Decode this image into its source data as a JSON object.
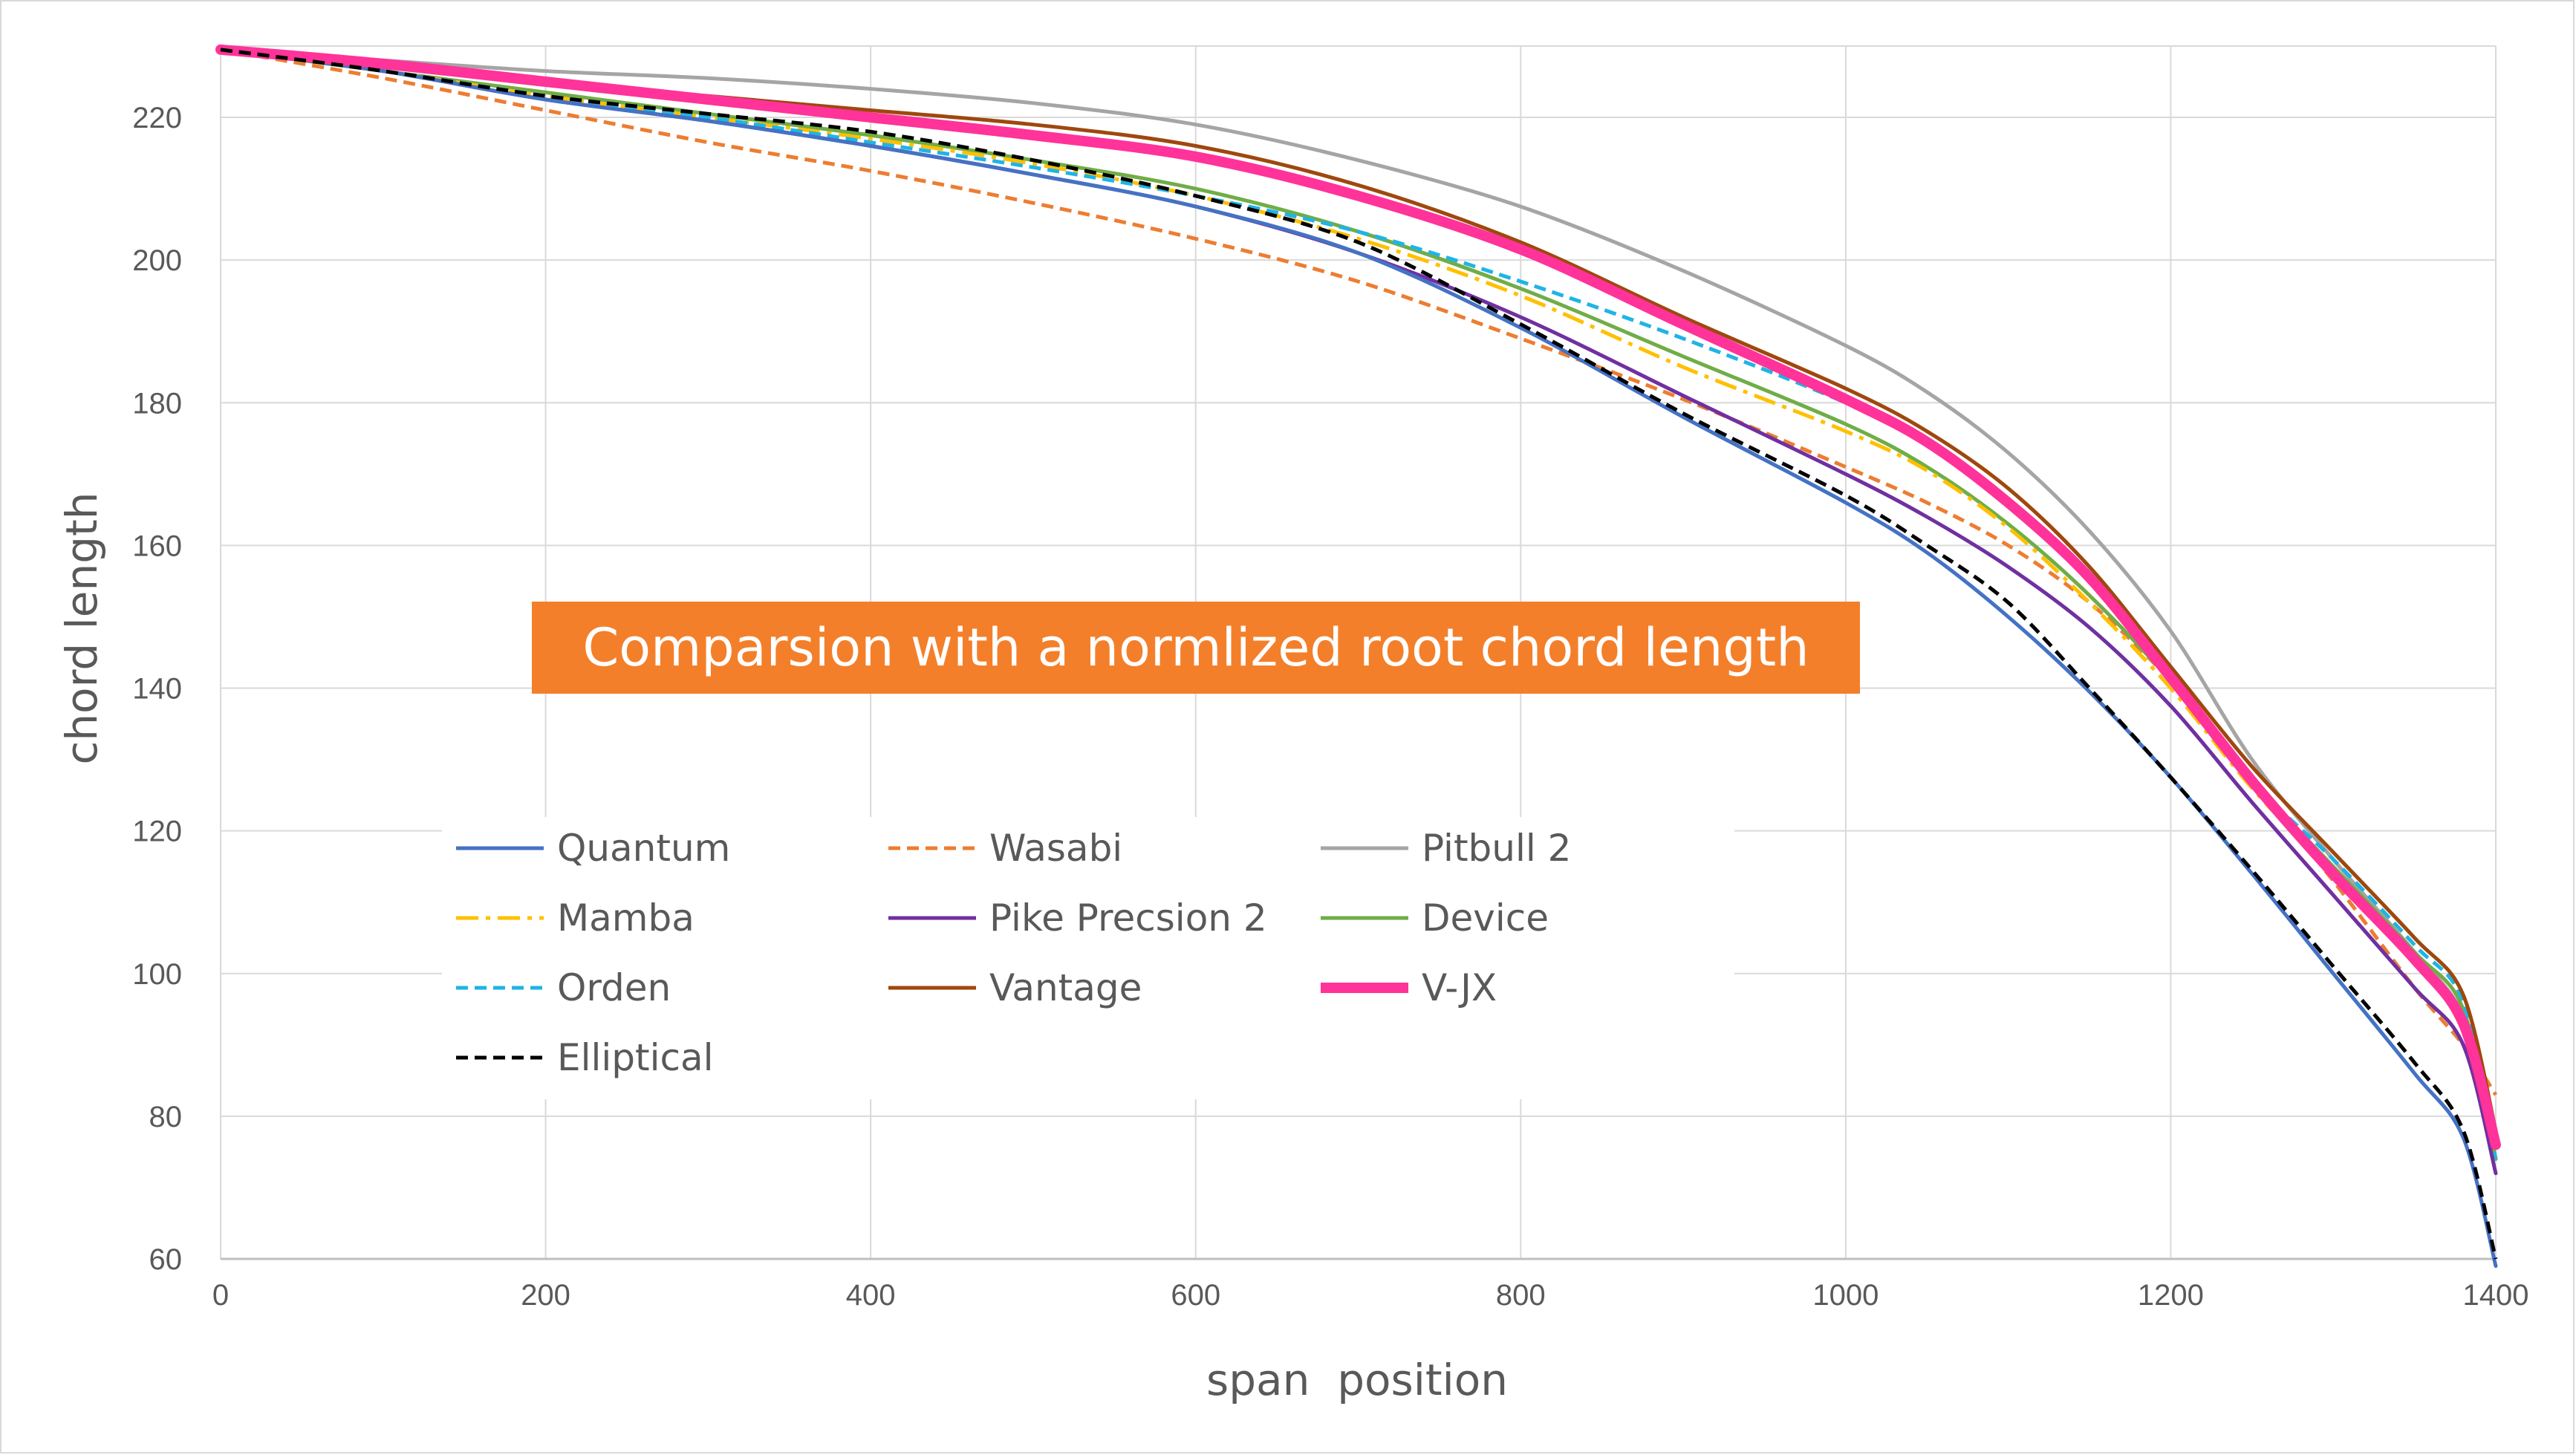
{
  "chart_data": {
    "type": "line",
    "xlabel": "span  position",
    "ylabel": "chord length",
    "annotation": "Comparsion with a normlized root chord length",
    "xlim": [
      0,
      1400
    ],
    "ylim": [
      60,
      230
    ],
    "x_ticks": [
      0,
      200,
      400,
      600,
      800,
      1000,
      1200,
      1400
    ],
    "y_ticks": [
      60,
      80,
      100,
      120,
      140,
      160,
      180,
      200,
      220
    ],
    "grid": "vertical and horizontal",
    "legend_position": "inside, lower-left",
    "series": [
      {
        "name": "Quantum",
        "color": "#4472c4",
        "dash": "solid",
        "x": [
          0,
          100,
          200,
          300,
          400,
          500,
          600,
          700,
          800,
          900,
          1000,
          1050,
          1100,
          1150,
          1200,
          1250,
          1300,
          1350,
          1380,
          1400
        ],
        "y": [
          229.5,
          226.5,
          222.5,
          219.5,
          216,
          212,
          207.5,
          201,
          190.5,
          178,
          166,
          159,
          150,
          139.5,
          127.5,
          114,
          100,
          86,
          77,
          59
        ]
      },
      {
        "name": "Wasabi",
        "color": "#ed7d31",
        "dash": "dash",
        "x": [
          0,
          100,
          200,
          300,
          400,
          500,
          600,
          700,
          800,
          900,
          1000,
          1050,
          1100,
          1150,
          1200,
          1250,
          1300,
          1350,
          1380,
          1400
        ],
        "y": [
          229.5,
          225.5,
          221,
          216.5,
          212.5,
          208,
          203,
          197,
          189,
          180.5,
          171,
          166,
          160,
          152,
          141,
          127,
          113,
          98,
          90,
          83
        ]
      },
      {
        "name": "Pitbull 2",
        "color": "#a5a5a5",
        "dash": "solid",
        "x": [
          0,
          100,
          200,
          300,
          400,
          500,
          600,
          700,
          800,
          900,
          1000,
          1050,
          1100,
          1150,
          1200,
          1250,
          1300,
          1350,
          1380,
          1400
        ],
        "y": [
          229.5,
          228,
          226.5,
          225.5,
          224,
          222,
          219,
          214,
          207.5,
          198.5,
          188,
          181.5,
          173,
          162,
          148,
          130,
          116,
          103,
          94,
          77
        ]
      },
      {
        "name": "Mamba",
        "color": "#ffc000",
        "dash": "dashdot",
        "x": [
          0,
          100,
          200,
          300,
          400,
          500,
          600,
          700,
          800,
          900,
          1000,
          1050,
          1100,
          1150,
          1200,
          1250,
          1300,
          1350,
          1380,
          1400
        ],
        "y": [
          229.5,
          226.5,
          223,
          220,
          217,
          213.5,
          209,
          203,
          195,
          185,
          176,
          170.5,
          162.5,
          152,
          140,
          126,
          114,
          102,
          94,
          77
        ]
      },
      {
        "name": "Pike Precsion 2",
        "color": "#7030a0",
        "dash": "solid",
        "x": [
          0,
          100,
          200,
          300,
          400,
          500,
          600,
          700,
          800,
          900,
          1000,
          1050,
          1100,
          1150,
          1200,
          1250,
          1300,
          1350,
          1380,
          1400
        ],
        "y": [
          229.5,
          226.5,
          222.5,
          219.5,
          216,
          212,
          207.5,
          201,
          192,
          181,
          170,
          164,
          157,
          148.5,
          137.5,
          124,
          111,
          98,
          90,
          72
        ]
      },
      {
        "name": "Device",
        "color": "#70ad47",
        "dash": "solid",
        "x": [
          0,
          100,
          200,
          300,
          400,
          500,
          600,
          700,
          800,
          900,
          1000,
          1050,
          1100,
          1150,
          1200,
          1250,
          1300,
          1350,
          1380,
          1400
        ],
        "y": [
          229.5,
          226.5,
          223.5,
          220.5,
          217.5,
          214,
          210,
          204,
          196,
          186.5,
          177,
          171,
          163,
          153,
          141,
          127,
          115,
          103,
          95,
          74
        ]
      },
      {
        "name": "Orden",
        "color": "#1fb4e6",
        "dash": "dash",
        "x": [
          0,
          100,
          200,
          300,
          400,
          500,
          600,
          700,
          800,
          900,
          1000,
          1050,
          1100,
          1150,
          1200,
          1250,
          1300,
          1350,
          1380,
          1400
        ],
        "y": [
          229.5,
          226.5,
          223,
          220,
          216.5,
          213,
          209,
          204,
          197,
          189,
          180,
          174,
          166,
          155.5,
          142,
          127,
          116,
          104,
          96,
          74
        ]
      },
      {
        "name": "Vantage",
        "color": "#9e480e",
        "dash": "solid",
        "x": [
          0,
          100,
          200,
          300,
          400,
          500,
          600,
          700,
          800,
          900,
          1000,
          1050,
          1100,
          1150,
          1200,
          1250,
          1300,
          1350,
          1380,
          1400
        ],
        "y": [
          229.5,
          227.5,
          225,
          223,
          221,
          219,
          216,
          210.5,
          202.5,
          192,
          182,
          176,
          168,
          157,
          143,
          129,
          117,
          105,
          97,
          78
        ]
      },
      {
        "name": "V-JX",
        "color": "#ff3399",
        "dash": "solid",
        "x": [
          0,
          100,
          200,
          300,
          400,
          500,
          600,
          700,
          800,
          900,
          1000,
          1050,
          1100,
          1150,
          1200,
          1250,
          1300,
          1350,
          1380,
          1400
        ],
        "y": [
          229.5,
          227.5,
          225,
          222.5,
          220,
          217.5,
          214.5,
          209,
          201.5,
          191,
          180.5,
          174.5,
          166,
          155.5,
          141.5,
          127,
          114,
          102,
          93,
          76
        ]
      },
      {
        "name": "Elliptical",
        "color": "#000000",
        "dash": "dash",
        "x": [
          0,
          100,
          200,
          300,
          400,
          500,
          600,
          700,
          800,
          900,
          1000,
          1050,
          1100,
          1150,
          1200,
          1250,
          1300,
          1350,
          1380,
          1400
        ],
        "y": [
          229.5,
          226.5,
          223,
          220.5,
          218,
          214,
          209,
          202.5,
          191,
          178.5,
          167,
          160,
          152,
          140,
          127.5,
          114.5,
          101,
          87.5,
          78,
          60
        ]
      }
    ]
  }
}
